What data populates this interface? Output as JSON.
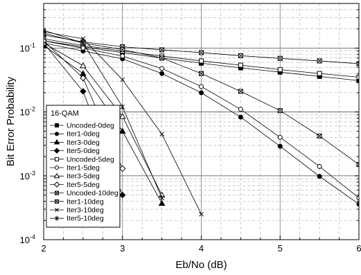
{
  "chart_data": {
    "type": "line",
    "xlabel": "Eb/No (dB)",
    "ylabel": "Bit Error Probability",
    "xlim": [
      2,
      6
    ],
    "ylim": [
      0.0001,
      0.5
    ],
    "yscale": "log",
    "grid": true,
    "x_ticks": [
      2,
      3,
      4,
      5,
      6
    ],
    "x_tick_labels": [
      "2",
      "3",
      "4",
      "5",
      "6"
    ],
    "y_ticks": [
      0.0001,
      0.001,
      0.01,
      0.1
    ],
    "y_tick_labels": [
      [
        "10",
        "-4"
      ],
      [
        "10",
        "-3"
      ],
      [
        "10",
        "-2"
      ],
      [
        "10",
        "-1"
      ]
    ],
    "legend": {
      "title": "16-QAM",
      "position": "bottom-left"
    },
    "series": [
      {
        "name": "Uncoded-0deg",
        "marker": "square-filled",
        "x": [
          2,
          2.5,
          3,
          3.5,
          4,
          4.5,
          5,
          5.5,
          6
        ],
        "y": [
          0.13,
          0.105,
          0.085,
          0.07,
          0.058,
          0.049,
          0.042,
          0.036,
          0.031
        ]
      },
      {
        "name": "Iter1-0deg",
        "marker": "circle-filled",
        "x": [
          2,
          2.5,
          3,
          3.5,
          4,
          4.5,
          5,
          5.5,
          6
        ],
        "y": [
          0.12,
          0.09,
          0.068,
          0.04,
          0.02,
          0.0083,
          0.0029,
          0.00098,
          0.00036
        ]
      },
      {
        "name": "Iter3-0deg",
        "marker": "triangle-filled",
        "x": [
          2,
          2.5,
          3,
          3.5
        ],
        "y": [
          0.11,
          0.04,
          0.005,
          0.00037
        ]
      },
      {
        "name": "Iter5-0deg",
        "marker": "diamond-filled",
        "x": [
          2,
          2.5,
          3
        ],
        "y": [
          0.12,
          0.021,
          0.0005
        ]
      },
      {
        "name": "Uncoded-5deg",
        "marker": "square-open",
        "x": [
          2,
          2.5,
          3,
          3.5,
          4,
          4.5,
          5,
          5.5,
          6
        ],
        "y": [
          0.14,
          0.11,
          0.09,
          0.075,
          0.063,
          0.054,
          0.046,
          0.04,
          0.035
        ]
      },
      {
        "name": "Iter1-5deg",
        "marker": "circle-open",
        "x": [
          2,
          2.5,
          3,
          3.5,
          4,
          4.5,
          5,
          5.5,
          6
        ],
        "y": [
          0.13,
          0.1,
          0.075,
          0.048,
          0.025,
          0.011,
          0.004,
          0.0014,
          0.00045
        ]
      },
      {
        "name": "Iter3-5deg",
        "marker": "triangle-open",
        "x": [
          2,
          2.5,
          3,
          3.5
        ],
        "y": [
          0.12,
          0.053,
          0.0085,
          0.0005
        ]
      },
      {
        "name": "Iter5-5deg",
        "marker": "diamond-open",
        "x": [
          2,
          2.5,
          3
        ],
        "y": [
          0.13,
          0.034,
          0.0013
        ]
      },
      {
        "name": "Uncoded-10deg",
        "marker": "square-x",
        "x": [
          2,
          2.5,
          3,
          3.5,
          4,
          4.5,
          5,
          5.5,
          6
        ],
        "y": [
          0.16,
          0.125,
          0.105,
          0.094,
          0.085,
          0.076,
          0.069,
          0.063,
          0.057
        ]
      },
      {
        "name": "Iter1-10deg",
        "marker": "square-x",
        "x": [
          2,
          2.5,
          3,
          3.5,
          4,
          4.5,
          5,
          5.5,
          6
        ],
        "y": [
          0.17,
          0.12,
          0.095,
          0.07,
          0.04,
          0.021,
          0.0105,
          0.0042,
          0.0015
        ]
      },
      {
        "name": "Iter3-10deg",
        "marker": "x",
        "x": [
          2,
          2.5,
          3,
          3.5,
          4
        ],
        "y": [
          0.18,
          0.14,
          0.032,
          0.0045,
          0.00025
        ]
      },
      {
        "name": "Iter5-10deg",
        "marker": "asterisk",
        "x": [
          2,
          2.5,
          3,
          3.5
        ],
        "y": [
          0.19,
          0.12,
          0.012,
          0.00045
        ]
      }
    ]
  }
}
